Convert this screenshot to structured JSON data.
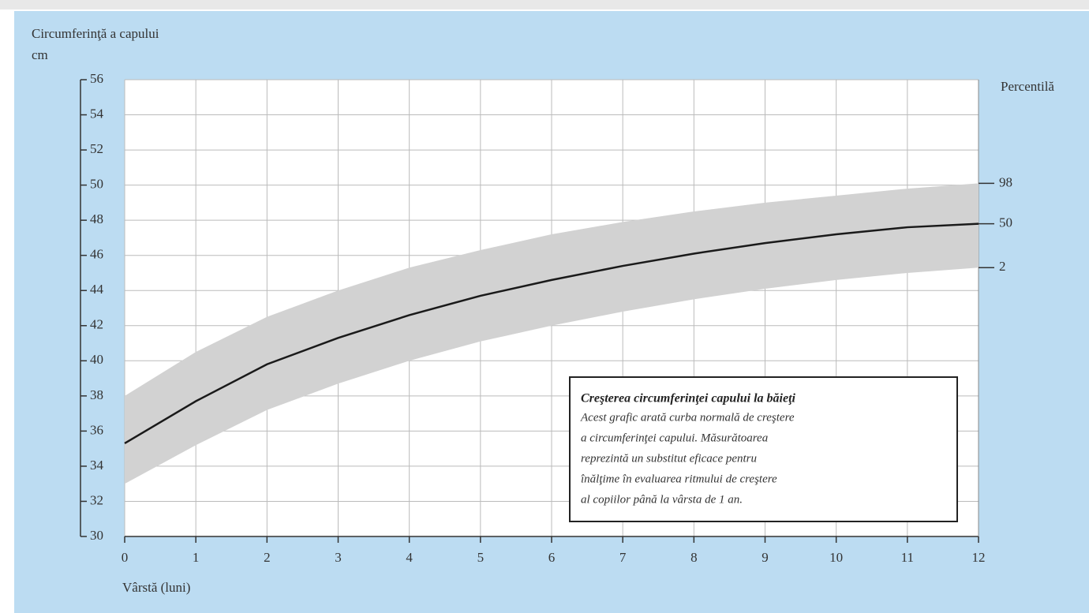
{
  "chart_data": {
    "type": "line",
    "y_title": "Circumferinţă a capului",
    "y_unit": "cm",
    "x_title": "Vârstă (luni)",
    "y2_title": "Percentilă",
    "x": [
      0,
      1,
      2,
      3,
      4,
      5,
      6,
      7,
      8,
      9,
      10,
      11,
      12
    ],
    "series": [
      {
        "name": "98",
        "color": "#d2d2d2",
        "values": [
          38,
          40.5,
          42.5,
          44,
          45.3,
          46.3,
          47.2,
          47.9,
          48.5,
          49,
          49.4,
          49.8,
          50.1
        ]
      },
      {
        "name": "50",
        "color": "#1a1a1a",
        "values": [
          35.3,
          37.7,
          39.8,
          41.3,
          42.6,
          43.7,
          44.6,
          45.4,
          46.1,
          46.7,
          47.2,
          47.6,
          47.8
        ]
      },
      {
        "name": "2",
        "color": "#d2d2d2",
        "values": [
          33,
          35.2,
          37.2,
          38.7,
          40,
          41.1,
          42,
          42.8,
          43.5,
          44.1,
          44.6,
          45,
          45.3
        ]
      }
    ],
    "xlim": [
      0,
      12
    ],
    "xticks": [
      0,
      1,
      2,
      3,
      4,
      5,
      6,
      7,
      8,
      9,
      10,
      11,
      12
    ],
    "ylim": [
      30,
      56
    ],
    "yticks": [
      30,
      32,
      34,
      36,
      38,
      40,
      42,
      44,
      46,
      48,
      50,
      52,
      54,
      56
    ],
    "grid": true,
    "annotation": {
      "title": "Creşterea circumferinţei capului la băieţi",
      "lines": [
        "Acest grafic arată curba normală de creştere",
        "a circumferinţei capului. Măsurătoarea",
        "reprezintă un substitut eficace pentru",
        "înălţime în evaluarea ritmului de creştere",
        "al copiilor până la vârsta de 1 an."
      ]
    }
  }
}
